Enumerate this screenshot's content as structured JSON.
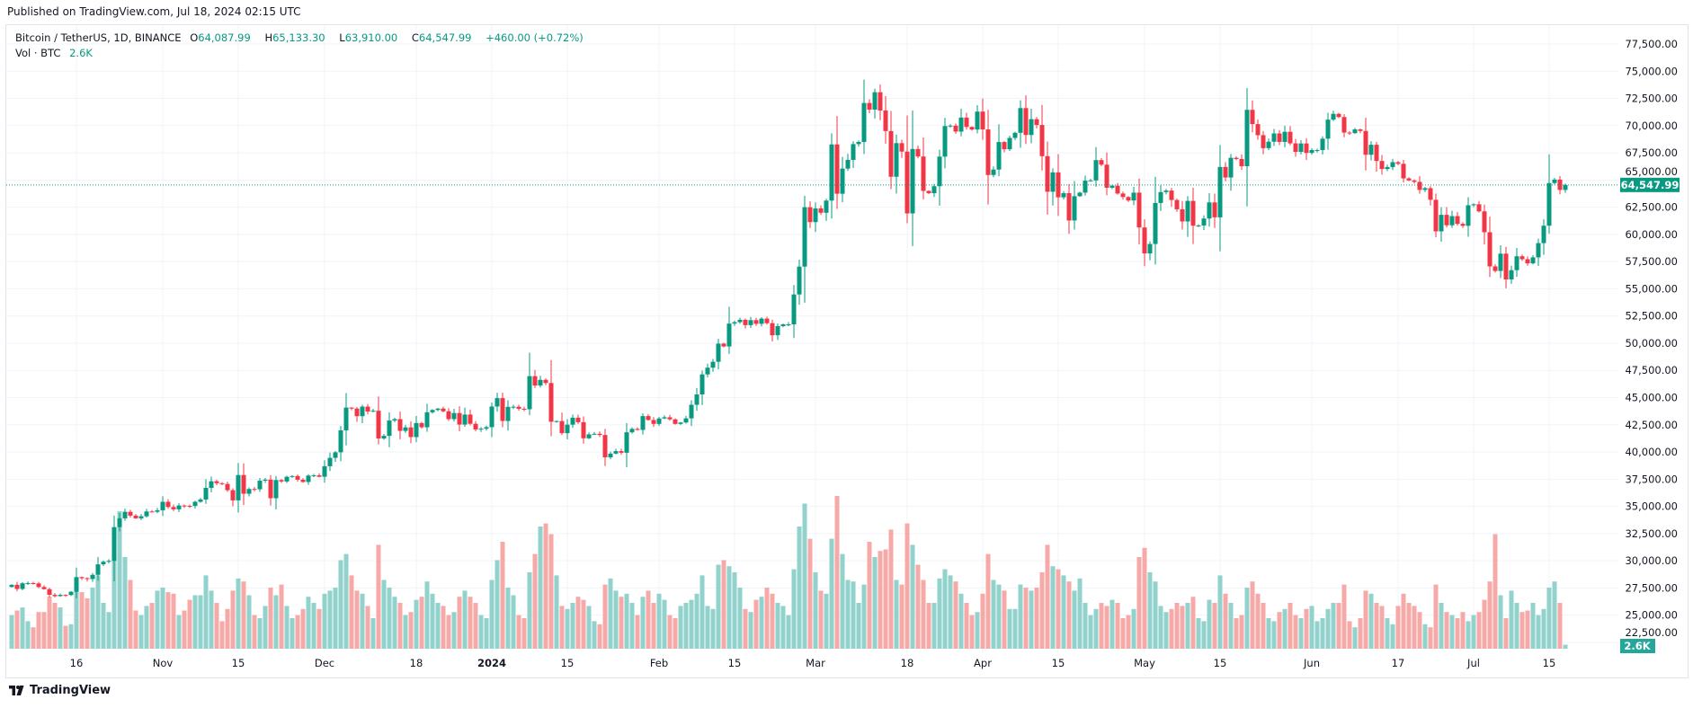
{
  "published": "Published on TradingView.com, Jul 18, 2024 02:15 UTC",
  "legend": {
    "symbol": "Bitcoin / TetherUS, 1D, BINANCE",
    "open_label": "O",
    "open": "64,087.99",
    "high_label": "H",
    "high": "65,133.30",
    "low_label": "L",
    "low": "63,910.00",
    "close_label": "C",
    "close": "64,547.99",
    "change": "+460.00 (+0.72%)",
    "vol_label": "Vol · BTC",
    "vol_value": "2.6K"
  },
  "logo_text": "TradingView",
  "colors": {
    "up": "#089981",
    "down": "#f23645",
    "vol_up": "#92d2cc",
    "vol_down": "#f7a9a7",
    "grid": "#f0f3fa"
  },
  "chart_data": {
    "type": "candlestick",
    "title": "Bitcoin / TetherUS, 1D, BINANCE",
    "start_date": "2023-10-04",
    "end_date": "2024-07-18",
    "ylim": [
      22500,
      77500
    ],
    "price_ticks": [
      "77,500.00",
      "75,000.00",
      "72,500.00",
      "70,000.00",
      "67,500.00",
      "65,000.00",
      "62,500.00",
      "60,000.00",
      "57,500.00",
      "55,000.00",
      "52,500.00",
      "50,000.00",
      "47,500.00",
      "45,000.00",
      "42,500.00",
      "40,000.00",
      "37,500.00",
      "35,000.00",
      "32,500.00",
      "30,000.00",
      "27,500.00",
      "25,000.00",
      "22,500.00"
    ],
    "x_ticks": [
      {
        "label": "16",
        "date": "2023-10-16"
      },
      {
        "label": "Nov",
        "date": "2023-11-01"
      },
      {
        "label": "15",
        "date": "2023-11-15"
      },
      {
        "label": "Dec",
        "date": "2023-12-01"
      },
      {
        "label": "18",
        "date": "2023-12-18"
      },
      {
        "label": "2024",
        "date": "2024-01-01",
        "bold": true
      },
      {
        "label": "15",
        "date": "2024-01-15"
      },
      {
        "label": "Feb",
        "date": "2024-02-01"
      },
      {
        "label": "15",
        "date": "2024-02-15"
      },
      {
        "label": "Mar",
        "date": "2024-03-01"
      },
      {
        "label": "18",
        "date": "2024-03-18"
      },
      {
        "label": "Apr",
        "date": "2024-04-01"
      },
      {
        "label": "15",
        "date": "2024-04-15"
      },
      {
        "label": "May",
        "date": "2024-05-01"
      },
      {
        "label": "15",
        "date": "2024-05-15"
      },
      {
        "label": "Jun",
        "date": "2024-06-01"
      },
      {
        "label": "17",
        "date": "2024-06-17"
      },
      {
        "label": "Jul",
        "date": "2024-07-01"
      },
      {
        "label": "15",
        "date": "2024-07-15"
      }
    ],
    "last_price": 64547.99,
    "last_price_label": "64,547.99",
    "last_volume_label": "2.6K",
    "first_open": 27590,
    "closes": [
      27790,
      27410,
      27930,
      27950,
      27920,
      27590,
      27390,
      26870,
      26750,
      26860,
      26850,
      27150,
      28500,
      28400,
      28320,
      28710,
      29670,
      29910,
      29990,
      33090,
      33900,
      34500,
      34150,
      33900,
      34090,
      34530,
      34500,
      34640,
      35420,
      34940,
      34730,
      35080,
      35050,
      35040,
      35420,
      35630,
      36700,
      37310,
      37130,
      37060,
      36490,
      35550,
      37880,
      36160,
      36600,
      36570,
      37360,
      37460,
      35750,
      37420,
      37290,
      37720,
      37790,
      37450,
      37240,
      37830,
      37850,
      37720,
      38690,
      39460,
      39970,
      41990,
      44080,
      43990,
      43290,
      44170,
      43720,
      43790,
      41240,
      41480,
      42890,
      43020,
      41940,
      42260,
      41370,
      42660,
      42270,
      43650,
      43860,
      43990,
      43740,
      43020,
      43580,
      42520,
      43440,
      42590,
      42070,
      42140,
      42280,
      44180,
      44950,
      42850,
      44150,
      44160,
      43970,
      43930,
      46970,
      46110,
      46630,
      46340,
      42780,
      42840,
      41730,
      42510,
      43150,
      42740,
      41260,
      41620,
      41670,
      41560,
      39510,
      39850,
      40080,
      39930,
      41810,
      42120,
      42030,
      43300,
      42940,
      42580,
      43080,
      43190,
      43000,
      42580,
      42710,
      43090,
      44340,
      45290,
      47130,
      47750,
      48290,
      49960,
      49700,
      51800,
      51930,
      52150,
      51660,
      52120,
      51780,
      52260,
      51840,
      50730,
      51570,
      51730,
      51730,
      54480,
      57040,
      62500,
      61130,
      62390,
      61990,
      63110,
      68270,
      63740,
      66050,
      66850,
      68300,
      68500,
      72080,
      71470,
      73070,
      71390,
      69500,
      65300,
      68390,
      67610,
      61930,
      67850,
      67160,
      64000,
      63790,
      64430,
      67150,
      69960,
      70000,
      69450,
      70740,
      69880,
      69640,
      71290,
      69650,
      65460,
      65960,
      68490,
      67830,
      68870,
      69340,
      71610,
      69140,
      70590,
      70060,
      67190,
      63920,
      65700,
      63410,
      63790,
      61280,
      63510,
      63840,
      64940,
      64960,
      66830,
      66410,
      64290,
      64480,
      63760,
      63440,
      63120,
      63840,
      60640,
      58250,
      59120,
      62890,
      63890,
      64030,
      63160,
      62310,
      61190,
      63080,
      60800,
      60820,
      61460,
      62940,
      61570,
      66200,
      65230,
      67040,
      66930,
      66270,
      71450,
      70140,
      69120,
      67930,
      68520,
      69280,
      68500,
      69430,
      68370,
      67590,
      68360,
      67490,
      67750,
      67750,
      68800,
      70550,
      71080,
      70790,
      69360,
      69310,
      69650,
      69510,
      67320,
      68240,
      66750,
      66010,
      66190,
      66640,
      66490,
      65150,
      64960,
      64830,
      64090,
      64250,
      63180,
      60280,
      61800,
      60840,
      61680,
      60970,
      60790,
      62680,
      62770,
      62120,
      60200,
      57060,
      56640,
      58230,
      55860,
      56710,
      57990,
      57720,
      57340,
      57890,
      59200,
      60800,
      64720,
      65040,
      64090,
      64547.99
    ],
    "volumes_k_btc": [
      22,
      25,
      27,
      18,
      14,
      24,
      24,
      34,
      30,
      27,
      15,
      16,
      42,
      37,
      33,
      40,
      48,
      30,
      24,
      60,
      90,
      60,
      45,
      25,
      22,
      28,
      30,
      38,
      40,
      37,
      36,
      22,
      25,
      32,
      35,
      35,
      48,
      38,
      30,
      18,
      26,
      38,
      46,
      44,
      35,
      22,
      20,
      28,
      40,
      35,
      42,
      28,
      20,
      22,
      26,
      34,
      30,
      26,
      36,
      38,
      40,
      58,
      62,
      48,
      38,
      36,
      28,
      20,
      68,
      45,
      40,
      34,
      30,
      22,
      24,
      32,
      34,
      44,
      36,
      30,
      28,
      22,
      24,
      34,
      38,
      34,
      30,
      22,
      20,
      45,
      58,
      70,
      40,
      35,
      22,
      20,
      50,
      62,
      80,
      82,
      75,
      48,
      28,
      26,
      30,
      34,
      32,
      28,
      18,
      16,
      42,
      46,
      38,
      34,
      36,
      30,
      22,
      34,
      38,
      30,
      36,
      32,
      22,
      20,
      28,
      30,
      32,
      36,
      48,
      28,
      26,
      55,
      58,
      54,
      50,
      40,
      26,
      24,
      32,
      34,
      40,
      36,
      30,
      28,
      22,
      52,
      80,
      95,
      72,
      50,
      38,
      36,
      72,
      100,
      62,
      45,
      44,
      30,
      42,
      70,
      60,
      64,
      65,
      78,
      45,
      42,
      82,
      68,
      55,
      45,
      30,
      30,
      46,
      52,
      48,
      44,
      36,
      30,
      22,
      24,
      36,
      62,
      45,
      42,
      38,
      26,
      26,
      42,
      40,
      38,
      40,
      50,
      68,
      54,
      52,
      48,
      44,
      38,
      46,
      30,
      22,
      26,
      30,
      28,
      32,
      30,
      20,
      22,
      26,
      60,
      66,
      50,
      44,
      28,
      24,
      26,
      30,
      28,
      30,
      34,
      20,
      18,
      32,
      30,
      48,
      36,
      30,
      20,
      22,
      40,
      44,
      36,
      30,
      20,
      18,
      24,
      26,
      30,
      22,
      20,
      26,
      28,
      18,
      20,
      26,
      30,
      30,
      42,
      18,
      14,
      20,
      38,
      36,
      30,
      28,
      20,
      16,
      28,
      36,
      30,
      28,
      24,
      16,
      14,
      42,
      30,
      24,
      22,
      20,
      24,
      18,
      22,
      24,
      32,
      44,
      75,
      35,
      20,
      38,
      30,
      24,
      25,
      30,
      22,
      26,
      40,
      44,
      30,
      2.6
    ]
  }
}
